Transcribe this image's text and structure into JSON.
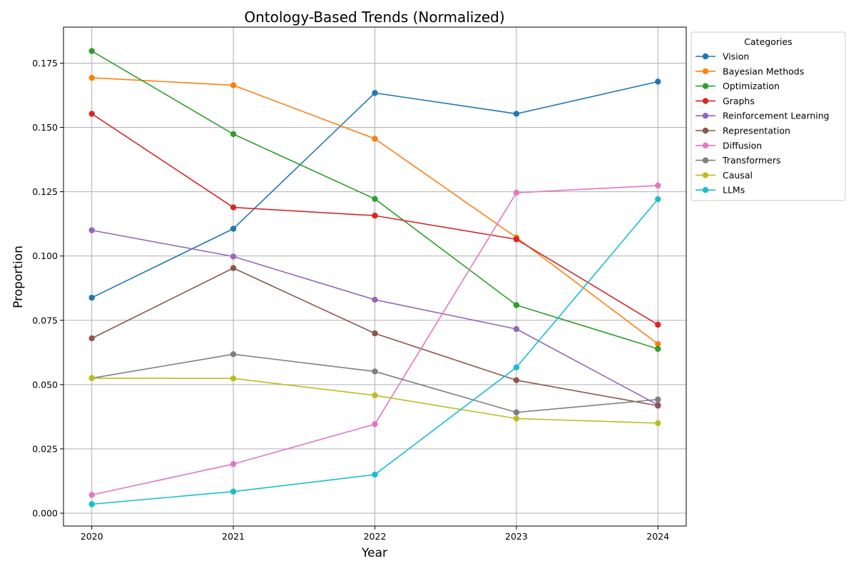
{
  "chart_data": {
    "type": "line",
    "title": "Ontology-Based Trends (Normalized)",
    "xlabel": "Year",
    "ylabel": "Proportion",
    "x": [
      2020,
      2021,
      2022,
      2023,
      2024
    ],
    "x_tick_labels": [
      "2020",
      "2021",
      "2022",
      "2023",
      "2024"
    ],
    "y_ticks": [
      0.0,
      0.025,
      0.05,
      0.075,
      0.1,
      0.125,
      0.15,
      0.175
    ],
    "y_tick_labels": [
      "0.000",
      "0.025",
      "0.050",
      "0.075",
      "0.100",
      "0.125",
      "0.150",
      "0.175"
    ],
    "ylim": [
      -0.005,
      0.189
    ],
    "xlim": [
      2019.8,
      2024.2
    ],
    "grid": true,
    "markers": "circle",
    "legend": {
      "title": "Categories",
      "placement": "outside-top-right"
    },
    "series": [
      {
        "name": "Vision",
        "color": "#1f77b4",
        "values": [
          0.0838,
          0.1106,
          0.1634,
          0.1553,
          0.1678
        ]
      },
      {
        "name": "Bayesian Methods",
        "color": "#ff7f0e",
        "values": [
          0.1693,
          0.1664,
          0.1456,
          0.1072,
          0.0658
        ]
      },
      {
        "name": "Optimization",
        "color": "#2ca02c",
        "values": [
          0.1797,
          0.1474,
          0.1222,
          0.0809,
          0.0639
        ]
      },
      {
        "name": "Graphs",
        "color": "#d62728",
        "values": [
          0.1553,
          0.1189,
          0.1157,
          0.1065,
          0.0733
        ]
      },
      {
        "name": "Reinforcement Learning",
        "color": "#9467bd",
        "values": [
          0.11,
          0.0998,
          0.083,
          0.0716,
          0.0421
        ]
      },
      {
        "name": "Representation",
        "color": "#8c564b",
        "values": [
          0.068,
          0.0953,
          0.0699,
          0.0517,
          0.0418
        ]
      },
      {
        "name": "Diffusion",
        "color": "#e377c2",
        "values": [
          0.0071,
          0.0191,
          0.0346,
          0.1246,
          0.1274
        ]
      },
      {
        "name": "Transformers",
        "color": "#7f7f7f",
        "values": [
          0.0525,
          0.0618,
          0.0551,
          0.0392,
          0.0442
        ]
      },
      {
        "name": "Causal",
        "color": "#bcbd22",
        "values": [
          0.0525,
          0.0524,
          0.0458,
          0.0368,
          0.035
        ]
      },
      {
        "name": "LLMs",
        "color": "#17becf",
        "values": [
          0.0035,
          0.0084,
          0.015,
          0.0567,
          0.1221
        ]
      }
    ]
  }
}
